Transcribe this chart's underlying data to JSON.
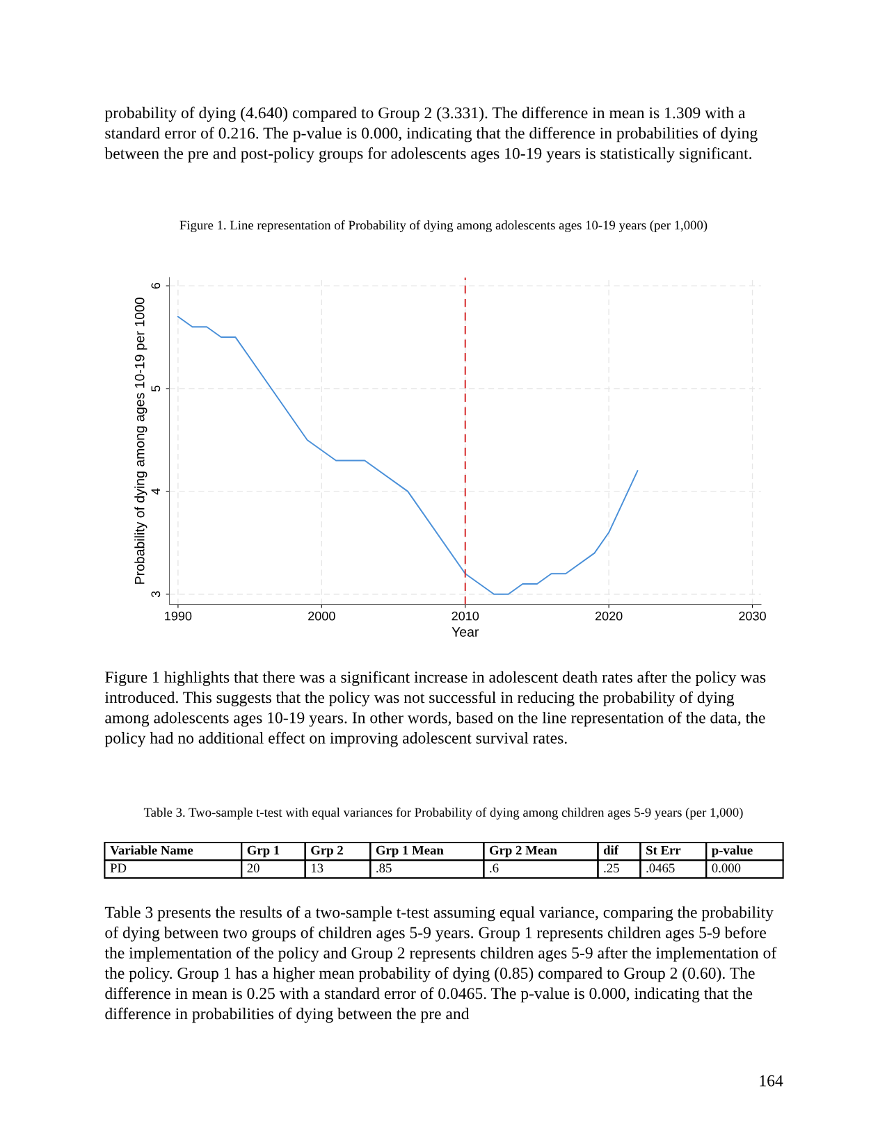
{
  "chart_data": {
    "type": "line",
    "title": "Figure 1. Line representation of Probability of dying among adolescents ages 10-19 years (per 1,000)",
    "xlabel": "Year",
    "ylabel": "Probability of dying among ages 10-19 per 1000",
    "series": [
      {
        "color": "#4a90d9",
        "x": [
          1990,
          1991,
          1992,
          1993,
          1994,
          1999,
          2000,
          2001,
          2003,
          2006,
          2010,
          2012,
          2013,
          2014,
          2015,
          2016,
          2017,
          2019,
          2020,
          2022
        ],
        "values": [
          5.7,
          5.6,
          5.6,
          5.5,
          5.5,
          4.5,
          4.4,
          4.3,
          4.3,
          4.0,
          3.2,
          3.0,
          3.0,
          3.1,
          3.1,
          3.2,
          3.2,
          3.4,
          3.6,
          4.2
        ]
      }
    ],
    "xlim": [
      1989.4,
      2030.6
    ],
    "ylim": [
      2.9,
      6.08
    ],
    "xticks": [
      1990,
      2000,
      2010,
      2020,
      2030
    ],
    "yticks": [
      3,
      4,
      5,
      6
    ],
    "grid": true,
    "marker": "none",
    "line_style": "solid",
    "legend": false,
    "ref_lines": [
      {
        "axis": "x",
        "value": 2010,
        "color": "#d62728",
        "line_style": "dashed"
      }
    ],
    "annotations": [
      "probability of dying (4.640) compared to Group 2 (3.331). The difference in mean is 1.309 with a standard error of 0.216. The p-value is 0.000, indicating that the difference in probabilities of dying between the pre and post-policy groups for adolescents ages 10-19 years is statistically significant.",
      "Figure 1 highlights that there was a significant increase in adolescent death rates after the policy was introduced. This suggests that the policy was not successful in reducing the probability of dying among adolescents ages 10-19 years. In other words, based on the line representation of the data, the policy had no additional effect on improving adolescent survival rates.",
      "Table 3. Two-sample t-test with equal variances for Probability of dying among children ages 5-9 years (per 1,000)",
      "Variable Name\tGrp 1\tGrp 2\tGrp 1 Mean\tGrp 2 Mean\tdif\tSt Err\tp-value",
      "PD\t20\t13\t.85\t.6\t.25\t.0465\t0.000",
      "Table 3 presents the results of a two-sample t-test assuming equal variance, comparing the probability of dying between two groups of children ages 5-9 years. Group 1 represents children ages 5-9 before the implementation of the policy and Group 2 represents children ages 5-9 after the implementation of the policy. Group 1 has a higher mean probability of dying (0.85) compared to Group 2 (0.60). The difference in mean is 0.25 with a standard error of 0.0465. The p-value is 0.000, indicating that the difference in probabilities of dying between the pre and",
      "164"
    ]
  }
}
